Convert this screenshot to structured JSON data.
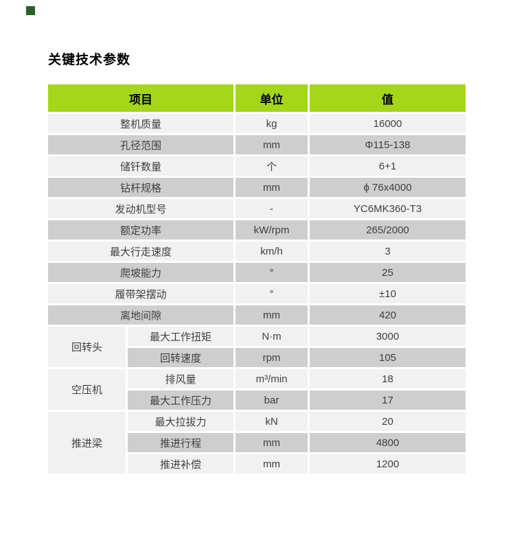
{
  "page": {
    "title": "关键技术参数",
    "accent_square_color": "#2b5e2c",
    "background_color": "#ffffff"
  },
  "table": {
    "colors": {
      "header_bg": "#a4d619",
      "header_text": "#000000",
      "row_light": "#f1f1f1",
      "row_dark": "#cecece",
      "body_text": "#3f3f3f",
      "grid_gap": "#ffffff"
    },
    "header": {
      "item": "项目",
      "unit": "单位",
      "value": "值"
    },
    "rows": [
      {
        "item": "整机质量",
        "unit": "kg",
        "value": "16000"
      },
      {
        "item": "孔径范围",
        "unit": "mm",
        "value": "Φ115-138"
      },
      {
        "item": "储钎数量",
        "unit": "个",
        "value": "6+1"
      },
      {
        "item": "钻杆规格",
        "unit": "mm",
        "value": "ϕ 76x4000"
      },
      {
        "item": "发动机型号",
        "unit": "-",
        "value": "YC6MK360-T3"
      },
      {
        "item": "额定功率",
        "unit": "kW/rpm",
        "value": "265/2000"
      },
      {
        "item": "最大行走速度",
        "unit": "km/h",
        "value": "3"
      },
      {
        "item": "爬坡能力",
        "unit": "°",
        "value": "25"
      },
      {
        "item": "履带架摆动",
        "unit": "°",
        "value": "±10"
      },
      {
        "item": "离地间隙",
        "unit": "mm",
        "value": "420"
      }
    ],
    "groups": [
      {
        "label": "回转头",
        "rows": [
          {
            "item": "最大工作扭矩",
            "unit": "N·m",
            "value": "3000"
          },
          {
            "item": "回转速度",
            "unit": "rpm",
            "value": "105"
          }
        ]
      },
      {
        "label": "空压机",
        "rows": [
          {
            "item": "排风量",
            "unit": "m³/min",
            "value": "18"
          },
          {
            "item": "最大工作压力",
            "unit": "bar",
            "value": "17"
          }
        ]
      },
      {
        "label": "推进梁",
        "rows": [
          {
            "item": "最大拉拔力",
            "unit": "kN",
            "value": "20"
          },
          {
            "item": "推进行程",
            "unit": "mm",
            "value": "4800"
          },
          {
            "item": "推进补偿",
            "unit": "mm",
            "value": "1200"
          }
        ]
      }
    ]
  }
}
